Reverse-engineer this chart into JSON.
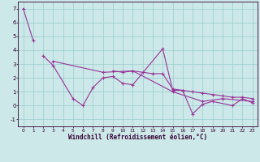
{
  "xlabel": "Windchill (Refroidissement éolien,°C)",
  "background_color": "#cce8e8",
  "grid_color": "#99cccc",
  "line_color": "#993399",
  "spine_color": "#330033",
  "tick_color": "#330033",
  "xlim": [
    -0.5,
    23.5
  ],
  "ylim": [
    -1.5,
    7.5
  ],
  "xticks": [
    0,
    1,
    2,
    3,
    4,
    5,
    6,
    7,
    8,
    9,
    10,
    11,
    12,
    13,
    14,
    15,
    16,
    17,
    18,
    19,
    20,
    21,
    22,
    23
  ],
  "yticks": [
    -1,
    0,
    1,
    2,
    3,
    4,
    5,
    6,
    7
  ],
  "series": [
    [
      7.0,
      4.7,
      null,
      null,
      null,
      null,
      null,
      null,
      null,
      null,
      null,
      null,
      null,
      null,
      null,
      null,
      null,
      null,
      null,
      null,
      null,
      null,
      null,
      null
    ],
    [
      null,
      null,
      3.6,
      2.9,
      null,
      0.5,
      0.0,
      1.3,
      2.0,
      2.1,
      1.6,
      1.5,
      null,
      null,
      4.1,
      1.1,
      1.1,
      -0.6,
      0.1,
      0.3,
      null,
      0.0,
      0.5,
      0.2
    ],
    [
      null,
      null,
      null,
      3.2,
      null,
      null,
      null,
      null,
      2.4,
      null,
      null,
      2.5,
      null,
      null,
      null,
      1.0,
      null,
      null,
      0.3,
      null,
      0.5,
      null,
      null,
      0.3
    ],
    [
      null,
      null,
      null,
      null,
      null,
      null,
      null,
      null,
      null,
      2.5,
      2.4,
      2.5,
      2.4,
      2.3,
      2.3,
      1.2,
      1.1,
      1.0,
      0.9,
      0.8,
      0.7,
      0.6,
      0.6,
      0.5
    ]
  ]
}
